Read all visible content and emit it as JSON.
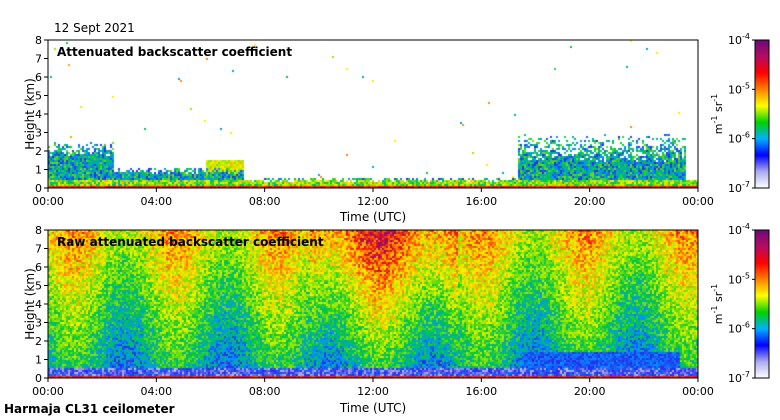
{
  "header": {
    "date": "12 Sept 2021"
  },
  "footer": {
    "instrument": "Harmaja CL31 ceilometer"
  },
  "colorbar": {
    "ticks": [
      "10",
      "10",
      "10",
      "10"
    ],
    "exponents": [
      "-4",
      "-5",
      "-6",
      "-7"
    ],
    "unit_m": "m",
    "unit_m_exp": "-1",
    "unit_sr": " sr",
    "unit_sr_exp": "-1",
    "colors": [
      "#6a0a78",
      "#b40c62",
      "#ff0000",
      "#ff8000",
      "#ffff00",
      "#00d000",
      "#00b0ff",
      "#0000ff",
      "#aaaaee",
      "#ffffff"
    ]
  },
  "chart_data": [
    {
      "type": "heatmap",
      "title": "Attenuated backscatter coefficient",
      "xlabel": "Time (UTC)",
      "ylabel": "Height (km)",
      "xticks": [
        "00:00",
        "04:00",
        "08:00",
        "12:00",
        "16:00",
        "20:00",
        "00:00"
      ],
      "yticks": [
        "0",
        "1",
        "2",
        "3",
        "4",
        "5",
        "6",
        "7",
        "8"
      ],
      "xlim_hours": [
        0,
        24
      ],
      "ylim_km": [
        0,
        8
      ],
      "colorbar_range": [
        1e-07,
        0.0001
      ],
      "colorbar_scale": "log"
    },
    {
      "type": "heatmap",
      "title": "Raw attenuated backscatter coefficient",
      "xlabel": "Time (UTC)",
      "ylabel": "Height (km)",
      "xticks": [
        "00:00",
        "04:00",
        "08:00",
        "12:00",
        "16:00",
        "20:00",
        "00:00"
      ],
      "yticks": [
        "0",
        "1",
        "2",
        "3",
        "4",
        "5",
        "6",
        "7",
        "8"
      ],
      "xlim_hours": [
        0,
        24
      ],
      "ylim_km": [
        0,
        8
      ],
      "colorbar_range": [
        1e-07,
        0.0001
      ],
      "colorbar_scale": "log"
    }
  ]
}
